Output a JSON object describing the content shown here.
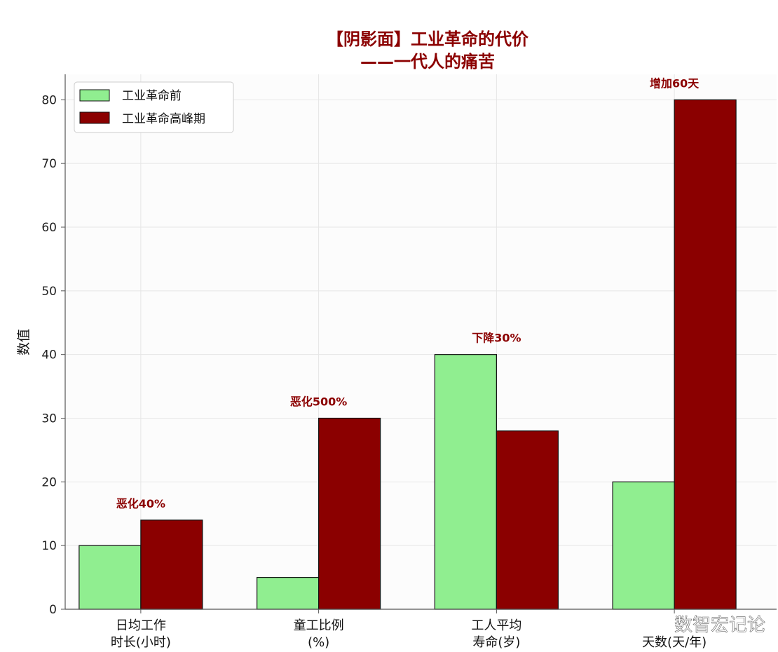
{
  "colors": {
    "title": "#8b0000",
    "annotation": "#8b0000",
    "before": "#90ee90",
    "peak": "#8b0000",
    "plot_bg": "#fcfcfc",
    "grid": "#e6e6e6",
    "bar_edge": "#111111"
  },
  "chart_data": {
    "type": "bar",
    "title": [
      "【阴影面】工业革命的代价",
      "——一代人的痛苦"
    ],
    "ylabel": "数值",
    "xlabel": "",
    "ylim": [
      0,
      84
    ],
    "yticks": [
      0,
      10,
      20,
      30,
      40,
      50,
      60,
      70,
      80
    ],
    "grid": true,
    "legend_placement": "top-left",
    "categories": [
      [
        "日均工作",
        "时长(小时)"
      ],
      [
        "童工比例",
        "(%)"
      ],
      [
        "工人平均",
        "寿命(岁)"
      ],
      [
        "",
        "天数(天/年)"
      ]
    ],
    "series": [
      {
        "name": "工业革命前",
        "values": [
          10,
          5,
          40,
          20
        ]
      },
      {
        "name": "工业革命高峰期",
        "values": [
          14,
          30,
          28,
          80
        ]
      }
    ],
    "annotations": [
      {
        "category_index": 0,
        "text": "恶化40%"
      },
      {
        "category_index": 1,
        "text": "恶化500%"
      },
      {
        "category_index": 2,
        "text": "下降30%"
      },
      {
        "category_index": 3,
        "text": "增加60天"
      }
    ]
  },
  "watermark": "数智宏记论"
}
